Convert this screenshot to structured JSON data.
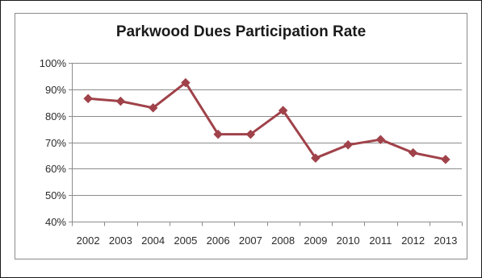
{
  "chart_data": {
    "type": "line",
    "title": "Parkwood Dues Participation Rate",
    "xlabel": "",
    "ylabel": "",
    "categories": [
      "2002",
      "2003",
      "2004",
      "2005",
      "2006",
      "2007",
      "2008",
      "2009",
      "2010",
      "2011",
      "2012",
      "2013"
    ],
    "series": [
      {
        "values": [
          86.5,
          85.5,
          83,
          92.5,
          73,
          73,
          82,
          64,
          69,
          71,
          66,
          63.5
        ],
        "color": "#a0424a",
        "marker": "diamond"
      }
    ],
    "ylim": [
      40,
      100
    ],
    "yticks": [
      40,
      50,
      60,
      70,
      80,
      90,
      100
    ],
    "ytick_labels": [
      "40%",
      "50%",
      "60%",
      "70%",
      "80%",
      "90%",
      "100%"
    ],
    "grid": "horizontal",
    "legend": "none"
  }
}
